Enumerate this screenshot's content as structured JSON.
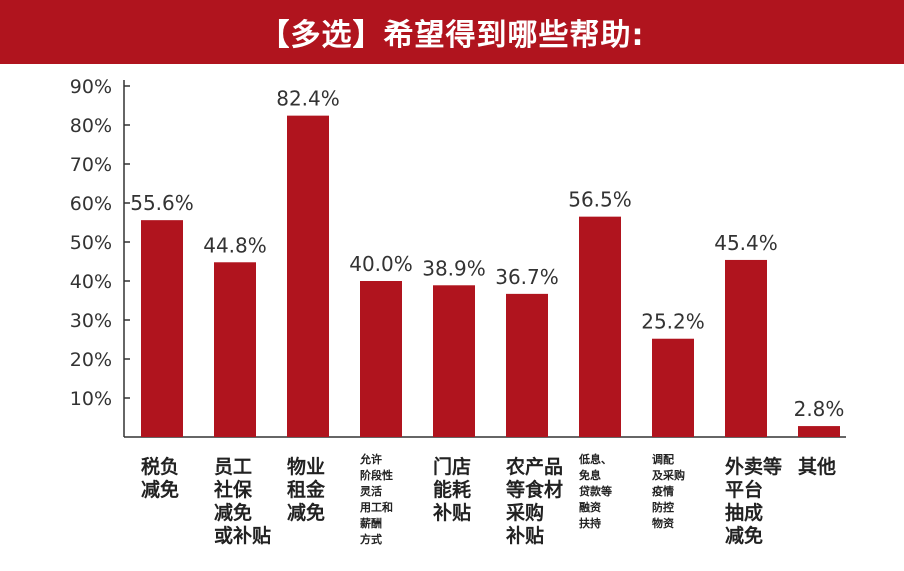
{
  "title": "【多选】希望得到哪些帮助:",
  "colors": {
    "banner": "#b0141e",
    "bar": "#b0141e",
    "axis": "#333333"
  },
  "chart_data": {
    "type": "bar",
    "title": "【多选】希望得到哪些帮助:",
    "xlabel": "",
    "ylabel": "",
    "ylim": [
      0,
      90
    ],
    "yticks": [
      "10%",
      "20%",
      "30%",
      "40%",
      "50%",
      "60%",
      "70%",
      "80%",
      "90%"
    ],
    "grid": false,
    "categories": [
      [
        "税负",
        "减免"
      ],
      [
        "员工",
        "社保",
        "减免",
        "或补贴"
      ],
      [
        "物业",
        "租金",
        "减免"
      ],
      [
        "允许",
        "阶段性",
        "灵活",
        "用工和",
        "薪酬",
        "方式"
      ],
      [
        "门店",
        "能耗",
        "补贴"
      ],
      [
        "农产品",
        "等食材",
        "采购",
        "补贴"
      ],
      [
        "低息、",
        "免息",
        "贷款等",
        "融资",
        "扶持"
      ],
      [
        "调配",
        "及采购",
        "疫情",
        "防控",
        "物资"
      ],
      [
        "外卖等",
        "平台",
        "抽成",
        "减免"
      ],
      [
        "其他"
      ]
    ],
    "values": [
      55.6,
      44.8,
      82.4,
      40.0,
      38.9,
      36.7,
      56.5,
      25.2,
      45.4,
      2.8
    ],
    "labels": [
      "55.6%",
      "44.8%",
      "82.4%",
      "40.0%",
      "38.9%",
      "36.7%",
      "56.5%",
      "25.2%",
      "45.4%",
      "2.8%"
    ]
  }
}
